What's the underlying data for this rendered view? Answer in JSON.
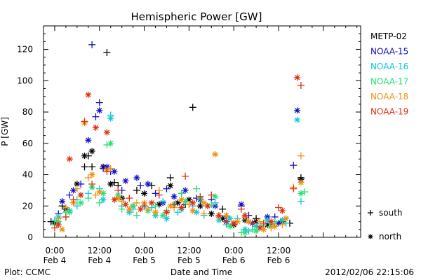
{
  "chart_data": {
    "type": "scatter",
    "title": "Hemispheric Power [GW]",
    "xlabel": "Date and Time",
    "ylabel": "P [GW]",
    "ylim": [
      0,
      135
    ],
    "y_ticks": [
      0,
      20,
      40,
      60,
      80,
      100,
      120
    ],
    "xlim": [
      -3,
      82
    ],
    "x_unit": "hours from 2012-02-04 00:00",
    "x_ticks": [
      {
        "x": 0,
        "time": "0:00",
        "date": "Feb 4"
      },
      {
        "x": 12,
        "time": "12:00",
        "date": "Feb 4"
      },
      {
        "x": 24,
        "time": "0:00",
        "date": "Feb 5"
      },
      {
        "x": 36,
        "time": "12:00",
        "date": "Feb 5"
      },
      {
        "x": 48,
        "time": "0:00",
        "date": "Feb 6"
      },
      {
        "x": 60,
        "time": "12:00",
        "date": "Feb 6"
      }
    ],
    "legend_position": "right",
    "series": [
      {
        "name": "METP-02",
        "color": "#000000",
        "south": [
          [
            -1,
            10
          ],
          [
            2,
            20
          ],
          [
            8,
            45
          ],
          [
            9,
            52
          ],
          [
            10,
            45
          ],
          [
            14,
            118
          ],
          [
            16,
            35
          ],
          [
            17,
            33
          ],
          [
            22,
            30
          ],
          [
            26,
            33
          ],
          [
            31,
            38
          ],
          [
            35,
            21
          ],
          [
            37,
            83
          ],
          [
            45,
            18
          ],
          [
            48,
            8
          ],
          [
            54,
            12
          ],
          [
            58,
            8
          ],
          [
            63,
            9
          ],
          [
            66,
            38
          ]
        ],
        "north": [
          [
            0,
            9
          ],
          [
            3,
            18
          ],
          [
            6,
            34
          ],
          [
            8,
            52
          ],
          [
            10,
            55
          ],
          [
            13,
            45
          ],
          [
            15,
            34
          ],
          [
            18,
            25
          ],
          [
            21,
            20
          ],
          [
            24,
            28
          ],
          [
            28,
            21
          ],
          [
            31,
            33
          ],
          [
            33,
            22
          ],
          [
            36,
            24
          ],
          [
            39,
            20
          ],
          [
            42,
            15
          ],
          [
            45,
            12
          ],
          [
            48,
            8
          ],
          [
            51,
            11
          ],
          [
            54,
            10
          ],
          [
            57,
            8
          ],
          [
            61,
            10
          ],
          [
            66,
            37
          ]
        ]
      },
      {
        "name": "NOAA-15",
        "color": "#1010c8",
        "south": [
          [
            1,
            15
          ],
          [
            4,
            27
          ],
          [
            7,
            34
          ],
          [
            10,
            123
          ],
          [
            11,
            77
          ],
          [
            12,
            86
          ],
          [
            13,
            44
          ],
          [
            15,
            42
          ],
          [
            18,
            30
          ],
          [
            23,
            33
          ],
          [
            27,
            28
          ],
          [
            30,
            31
          ],
          [
            34,
            28
          ],
          [
            38,
            25
          ],
          [
            42,
            24
          ],
          [
            46,
            13
          ],
          [
            50,
            20
          ],
          [
            52,
            14
          ],
          [
            56,
            8
          ],
          [
            59,
            13
          ],
          [
            64,
            46
          ]
        ],
        "north": [
          [
            2,
            23
          ],
          [
            5,
            30
          ],
          [
            9,
            62
          ],
          [
            12,
            81
          ],
          [
            14,
            45
          ],
          [
            16,
            42
          ],
          [
            19,
            36
          ],
          [
            22,
            38
          ],
          [
            25,
            34
          ],
          [
            29,
            22
          ],
          [
            32,
            26
          ],
          [
            35,
            30
          ],
          [
            39,
            24
          ],
          [
            43,
            20
          ],
          [
            46,
            10
          ],
          [
            50,
            21
          ],
          [
            53,
            9
          ],
          [
            57,
            13
          ],
          [
            60,
            9
          ],
          [
            65,
            81
          ]
        ]
      },
      {
        "name": "NOAA-16",
        "color": "#10c8d8",
        "south": [
          [
            0,
            11
          ],
          [
            3,
            13
          ],
          [
            6,
            20
          ],
          [
            9,
            28
          ],
          [
            12,
            31
          ],
          [
            15,
            78
          ],
          [
            18,
            20
          ],
          [
            21,
            18
          ],
          [
            26,
            19
          ],
          [
            29,
            23
          ],
          [
            33,
            16
          ],
          [
            37,
            20
          ],
          [
            40,
            14
          ],
          [
            43,
            22
          ],
          [
            46,
            8
          ],
          [
            49,
            12
          ],
          [
            52,
            4
          ],
          [
            55,
            7
          ],
          [
            58,
            9
          ],
          [
            62,
            9
          ],
          [
            66,
            23
          ]
        ],
        "north": [
          [
            1,
            13
          ],
          [
            4,
            17
          ],
          [
            7,
            27
          ],
          [
            10,
            32
          ],
          [
            13,
            24
          ],
          [
            15,
            76
          ],
          [
            17,
            25
          ],
          [
            20,
            16
          ],
          [
            24,
            20
          ],
          [
            27,
            14
          ],
          [
            30,
            12
          ],
          [
            34,
            18
          ],
          [
            38,
            16
          ],
          [
            41,
            20
          ],
          [
            44,
            11
          ],
          [
            47,
            12
          ],
          [
            51,
            5
          ],
          [
            54,
            7
          ],
          [
            57,
            11
          ],
          [
            61,
            11
          ],
          [
            65,
            75
          ]
        ]
      },
      {
        "name": "NOAA-17",
        "color": "#28e070",
        "south": [
          [
            0,
            8
          ],
          [
            3,
            16
          ],
          [
            6,
            24
          ],
          [
            9,
            25
          ],
          [
            12,
            22
          ],
          [
            14,
            59
          ],
          [
            18,
            18
          ],
          [
            22,
            14
          ],
          [
            27,
            20
          ],
          [
            30,
            17
          ],
          [
            34,
            28
          ],
          [
            38,
            31
          ],
          [
            42,
            21
          ],
          [
            46,
            10
          ],
          [
            50,
            3
          ],
          [
            53,
            5
          ],
          [
            56,
            8
          ],
          [
            59,
            10
          ],
          [
            67,
            29
          ]
        ],
        "north": [
          [
            1,
            10
          ],
          [
            4,
            16
          ],
          [
            7,
            22
          ],
          [
            10,
            32
          ],
          [
            13,
            28
          ],
          [
            15,
            60
          ],
          [
            17,
            27
          ],
          [
            21,
            20
          ],
          [
            25,
            17
          ],
          [
            29,
            14
          ],
          [
            32,
            21
          ],
          [
            35,
            23
          ],
          [
            39,
            25
          ],
          [
            43,
            26
          ],
          [
            47,
            7
          ],
          [
            51,
            3
          ],
          [
            54,
            4
          ],
          [
            58,
            7
          ],
          [
            62,
            12
          ],
          [
            66,
            28
          ]
        ]
      },
      {
        "name": "NOAA-18",
        "color": "#f09010",
        "south": [
          [
            1,
            12
          ],
          [
            3,
            19
          ],
          [
            6,
            31
          ],
          [
            9,
            38
          ],
          [
            11,
            27
          ],
          [
            15,
            44
          ],
          [
            18,
            23
          ],
          [
            22,
            22
          ],
          [
            25,
            18
          ],
          [
            28,
            30
          ],
          [
            32,
            19
          ],
          [
            36,
            21
          ],
          [
            40,
            15
          ],
          [
            44,
            13
          ],
          [
            48,
            9
          ],
          [
            51,
            13
          ],
          [
            55,
            10
          ],
          [
            58,
            6
          ],
          [
            61,
            8
          ],
          [
            64,
            32
          ],
          [
            66,
            52
          ]
        ],
        "north": [
          [
            2,
            5
          ],
          [
            5,
            22
          ],
          [
            8,
            73
          ],
          [
            10,
            40
          ],
          [
            12,
            29
          ],
          [
            14,
            43
          ],
          [
            17,
            25
          ],
          [
            20,
            18
          ],
          [
            24,
            22
          ],
          [
            27,
            16
          ],
          [
            31,
            20
          ],
          [
            34,
            24
          ],
          [
            37,
            17
          ],
          [
            40,
            22
          ],
          [
            43,
            53
          ],
          [
            46,
            14
          ],
          [
            49,
            10
          ],
          [
            52,
            10
          ],
          [
            56,
            5
          ],
          [
            59,
            7
          ],
          [
            62,
            12
          ],
          [
            66,
            35
          ]
        ]
      },
      {
        "name": "NOAA-19",
        "color": "#e03010",
        "south": [
          [
            0,
            6
          ],
          [
            3,
            13
          ],
          [
            5,
            24
          ],
          [
            8,
            74
          ],
          [
            10,
            34
          ],
          [
            14,
            42
          ],
          [
            17,
            30
          ],
          [
            20,
            25
          ],
          [
            24,
            20
          ],
          [
            28,
            27
          ],
          [
            32,
            21
          ],
          [
            35,
            39
          ],
          [
            39,
            26
          ],
          [
            42,
            27
          ],
          [
            46,
            10
          ],
          [
            50,
            18
          ],
          [
            53,
            9
          ],
          [
            56,
            9
          ],
          [
            60,
            19
          ],
          [
            64,
            31
          ],
          [
            66,
            97
          ]
        ],
        "north": [
          [
            1,
            8
          ],
          [
            4,
            50
          ],
          [
            7,
            27
          ],
          [
            9,
            91
          ],
          [
            11,
            70
          ],
          [
            14,
            67
          ],
          [
            16,
            24
          ],
          [
            19,
            21
          ],
          [
            23,
            18
          ],
          [
            26,
            22
          ],
          [
            30,
            16
          ],
          [
            34,
            19
          ],
          [
            37,
            22
          ],
          [
            41,
            20
          ],
          [
            44,
            14
          ],
          [
            48,
            9
          ],
          [
            51,
            14
          ],
          [
            55,
            6
          ],
          [
            58,
            10
          ],
          [
            61,
            17
          ],
          [
            65,
            102
          ]
        ]
      }
    ],
    "marker_key": [
      {
        "symbol": "+",
        "label": "south"
      },
      {
        "symbol": "*",
        "label": "north"
      }
    ],
    "footer_left": "Plot: CCMC",
    "footer_right": "2012/02/06 22:15:06"
  }
}
